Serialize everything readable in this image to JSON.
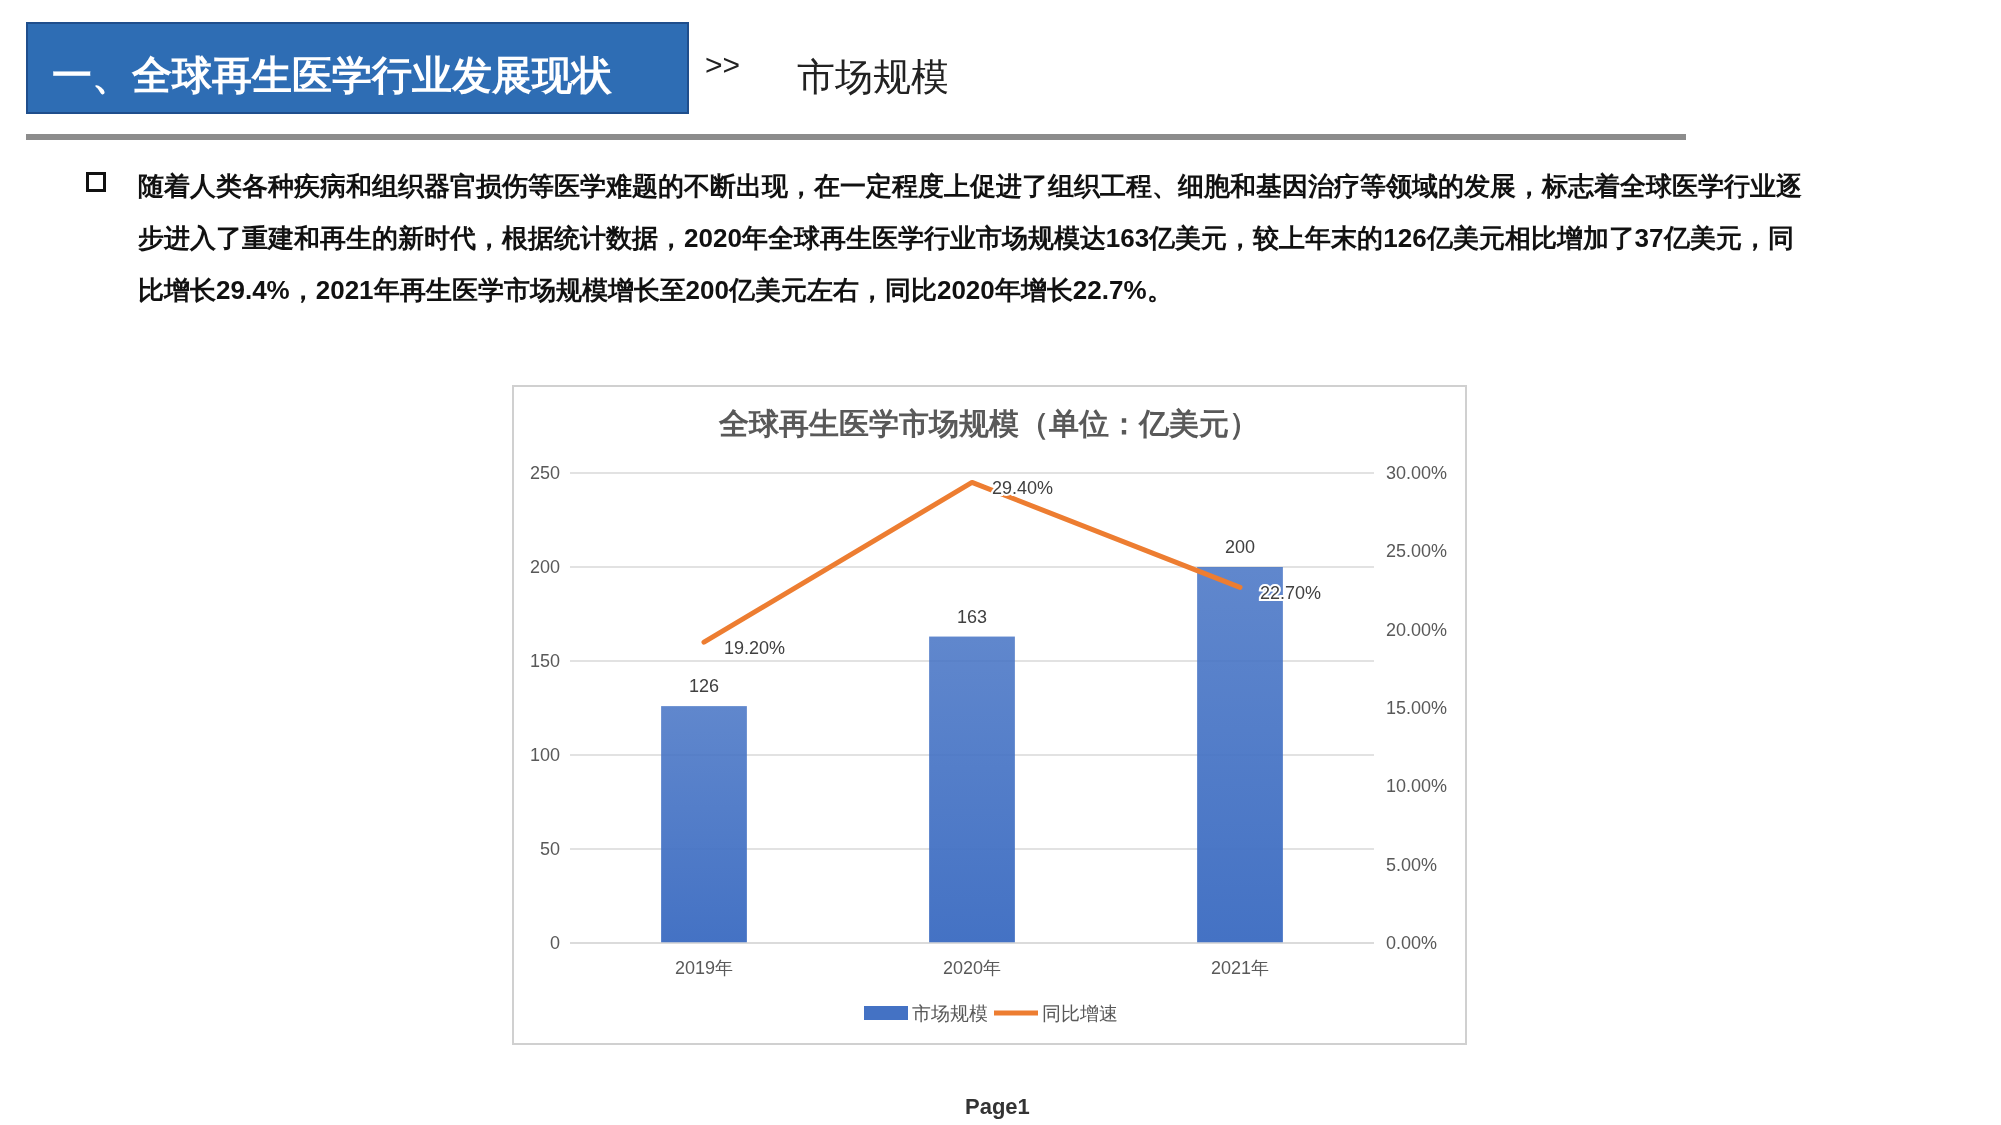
{
  "chart_data": {
    "type": "bar",
    "title": "全球再生医学市场规模（单位：亿美元）",
    "annotations": [
      "一、全球再生医学行业发展现状",
      ">>",
      "市场规模",
      "随着人类各种疾病和组织器官损伤等医学难题的不断出现，在一定程度上促进了组织工程、细胞和基因治疗等领域的发展，标志着全球医学行业逐步进入了重建和再生的新时代，根据统计数据，2020年全球再生医学行业市场规模达163亿美元，较上年末的126亿美元相比增加了37亿美元，同比增长29.4%，2021年再生医学市场规模增长至200亿美元左右，同比2020年增长22.7%。",
      "Page1"
    ],
    "categories": [
      "2019年",
      "2020年",
      "2021年"
    ],
    "series": [
      {
        "name": "市场规模",
        "color": "#4472c4",
        "values": [
          126,
          163,
          200
        ],
        "value_labels": [
          "126",
          "163",
          "200"
        ]
      },
      {
        "name": "同比增速",
        "type": "line",
        "axis": "y2",
        "color": "#ed7d31",
        "values": [
          19.2,
          29.4,
          22.7
        ],
        "value_labels": [
          "19.20%",
          "29.40%",
          "22.70%"
        ]
      }
    ],
    "ylim": [
      0,
      250
    ],
    "yticks": [
      0,
      50,
      100,
      150,
      200,
      250
    ],
    "y2lim": [
      0,
      30
    ],
    "y2ticks": [
      {
        "value": 0,
        "label": "0.00%"
      },
      {
        "value": 5,
        "label": "5.00%"
      },
      {
        "value": 10,
        "label": "10.00%"
      },
      {
        "value": 15,
        "label": "15.00%"
      },
      {
        "value": 20,
        "label": "20.00%"
      },
      {
        "value": 25,
        "label": "25.00%"
      },
      {
        "value": 30,
        "label": "30.00%"
      }
    ],
    "grid": "y",
    "legend": "bottom",
    "marker": "none"
  }
}
